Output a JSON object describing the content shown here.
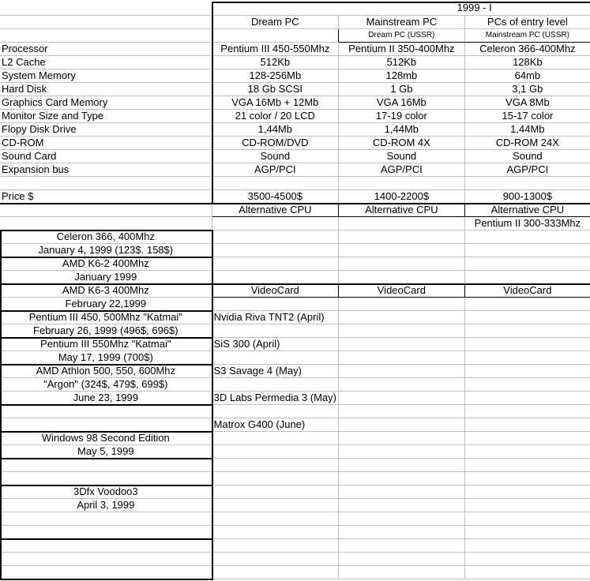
{
  "sheet": {
    "rows": [
      [
        "",
        "1999 - I",
        "",
        ""
      ],
      [
        "",
        "Dream PC",
        "Mainstream PC",
        "PCs of entry level"
      ],
      [
        "",
        "",
        "Dream PC (USSR)",
        "Mainstream PC (USSR)"
      ],
      [
        "Processor",
        "Pentium III 450-550Mhz",
        "Pentium II 350-400Mhz",
        "Celeron 366-400Mhz"
      ],
      [
        "L2 Cache",
        "512Kb",
        "512Kb",
        "128Kb"
      ],
      [
        "System Memory",
        "128-256Mb",
        "128mb",
        "64mb"
      ],
      [
        "Hard Disk",
        "18 Gb SCSI",
        "1 Gb",
        "3,1 Gb"
      ],
      [
        "Graphics Card Memory",
        "VGA 16Mb + 12Mb",
        "VGA 16Mb",
        "VGA 8Mb"
      ],
      [
        "Monitor Size and Type",
        "21 color / 20 LCD",
        "17-19 color",
        "15-17 color"
      ],
      [
        "Flopy Disk Drive",
        "1,44Mb",
        "1,44Mb",
        "1,44Mb"
      ],
      [
        "CD-ROM",
        "CD-ROM/DVD",
        "CD-ROM 4X",
        "CD-ROM 24X"
      ],
      [
        "Sound Card",
        "Sound",
        "Sound",
        "Sound"
      ],
      [
        "Expansion bus",
        "AGP/PCI",
        "AGP/PCI",
        "AGP/PCI"
      ],
      [
        "",
        "",
        "",
        ""
      ],
      [
        "Price $",
        "3500-4500$",
        "1400-2200$",
        "900-1300$"
      ],
      [
        "",
        "Alternative CPU",
        "Alternative CPU",
        "Alternative CPU"
      ],
      [
        "",
        "",
        "",
        "Pentium II 300-333Mhz"
      ],
      [
        "Celeron 366, 400Mhz",
        "",
        "",
        ""
      ],
      [
        "January 4, 1999 (123$. 158$)",
        "",
        "",
        ""
      ],
      [
        "AMD K6-2 400Mhz",
        "",
        "",
        ""
      ],
      [
        "January 1999",
        "",
        "",
        ""
      ],
      [
        "AMD K6-3 400Mhz",
        "VideoCard",
        "VideoCard",
        "VideoCard"
      ],
      [
        "February 22,1999",
        "",
        "",
        ""
      ],
      [
        "Pentium III 450, 500Mhz \"Katmai\"",
        "Nvidia Riva TNT2 (April)",
        "",
        ""
      ],
      [
        "February 26, 1999 (496$, 696$)",
        "",
        "",
        ""
      ],
      [
        "Pentium III 550Mhz \"Katmai\"",
        "SiS 300 (April)",
        "",
        ""
      ],
      [
        "May 17, 1999 (700$)",
        "",
        "",
        ""
      ],
      [
        "AMD Athlon 500, 550, 600Mhz",
        "S3 Savage 4 (May)",
        "",
        ""
      ],
      [
        "\"Argon\" (324$, 479$, 699$)",
        "",
        "",
        ""
      ],
      [
        "June 23, 1999",
        "3D Labs Permedia 3 (May)",
        "",
        ""
      ],
      [
        "",
        "",
        "",
        ""
      ],
      [
        "",
        "Matrox G400 (June)",
        "",
        ""
      ],
      [
        "Windows 98 Second Edition",
        "",
        "",
        ""
      ],
      [
        "May 5, 1999",
        "",
        "",
        ""
      ],
      [
        "",
        "",
        "",
        ""
      ],
      [
        "",
        "",
        "",
        ""
      ],
      [
        "3Dfx Voodoo3",
        "",
        "",
        ""
      ],
      [
        "April 3, 1999",
        "",
        "",
        ""
      ],
      [
        "",
        "",
        "",
        ""
      ],
      [
        "",
        "",
        "",
        ""
      ],
      [
        "",
        "",
        "",
        ""
      ],
      [
        "",
        "",
        "",
        ""
      ],
      [
        "",
        "",
        "",
        ""
      ]
    ]
  }
}
